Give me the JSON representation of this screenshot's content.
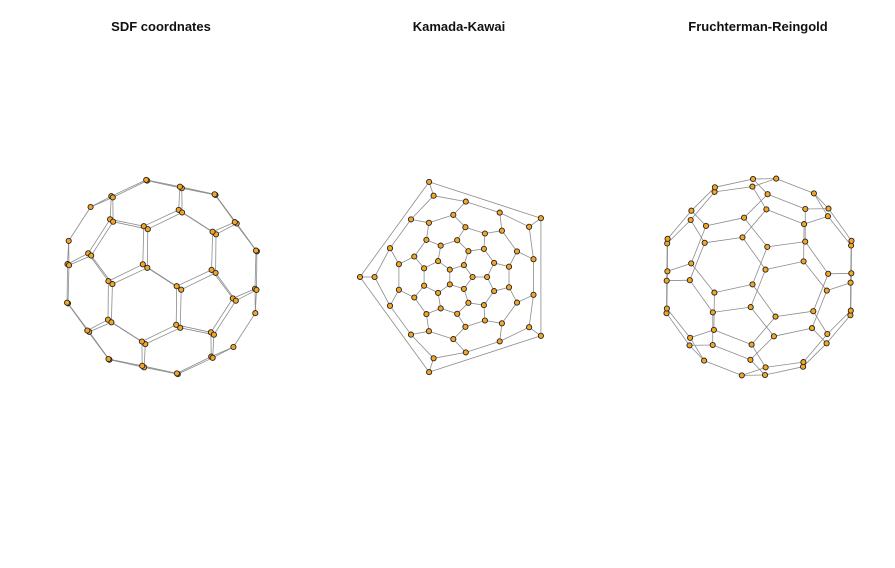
{
  "panels": [
    {
      "title": "SDF coordnates",
      "layout": "sdf"
    },
    {
      "title": "Kamada-Kawai",
      "layout": "kk"
    },
    {
      "title": "Fruchterman-Reingold",
      "layout": "fr"
    }
  ],
  "graph": {
    "vertex_count": 60,
    "edge_count": 90,
    "vertex_degree": 3
  },
  "colors": {
    "vertex_fill": "#f5a623",
    "vertex_stroke": "#222222",
    "edge": "#8c8c8c",
    "title": "#111111"
  }
}
